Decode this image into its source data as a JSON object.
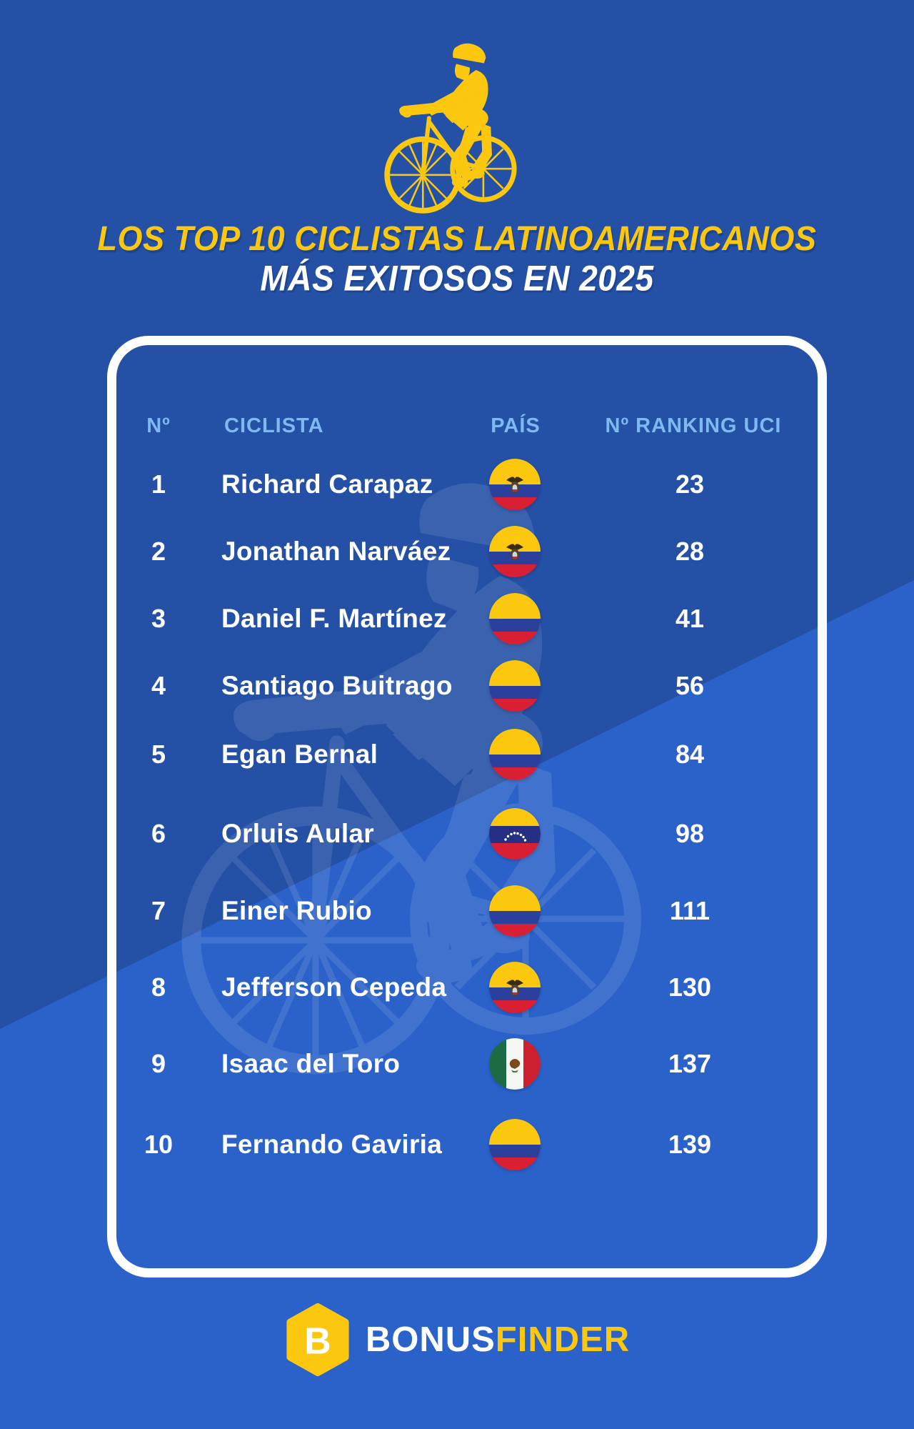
{
  "page": {
    "kind": "infographic",
    "colors": {
      "background_dark_blue": "#2450A5",
      "background_light_blue": "#2A62C9",
      "accent_yellow": "#FBC70F",
      "header_light_blue": "#7EB9F0",
      "text_white": "#FFFFFF"
    }
  },
  "header": {
    "illustration": "yellow-road-cyclist-icon",
    "title_line1": "LOS TOP 10 CICLISTAS LATINOAMERICANOS",
    "title_line2": "MÁS EXITOSOS EN 2025"
  },
  "table": {
    "columns": [
      {
        "key": "rank",
        "label": "Nº"
      },
      {
        "key": "name",
        "label": "CICLISTA"
      },
      {
        "key": "country",
        "label": "PAÍS"
      },
      {
        "key": "uci",
        "label": "Nº RANKING UCI"
      }
    ],
    "rows": [
      {
        "rank": "1",
        "name": "Richard Carapaz",
        "country": "Ecuador",
        "flag": "ecuador",
        "uci": "23"
      },
      {
        "rank": "2",
        "name": "Jonathan Narváez",
        "country": "Ecuador",
        "flag": "ecuador",
        "uci": "28"
      },
      {
        "rank": "3",
        "name": "Daniel F. Martínez",
        "country": "Colombia",
        "flag": "colombia",
        "uci": "41"
      },
      {
        "rank": "4",
        "name": "Santiago Buitrago",
        "country": "Colombia",
        "flag": "colombia",
        "uci": "56"
      },
      {
        "rank": "5",
        "name": "Egan Bernal",
        "country": "Colombia",
        "flag": "colombia",
        "uci": "84"
      },
      {
        "rank": "6",
        "name": "Orluis Aular",
        "country": "Venezuela",
        "flag": "venezuela",
        "uci": "98"
      },
      {
        "rank": "7",
        "name": "Einer Rubio",
        "country": "Colombia",
        "flag": "colombia",
        "uci": "111"
      },
      {
        "rank": "8",
        "name": "Jefferson Cepeda",
        "country": "Ecuador",
        "flag": "ecuador",
        "uci": "130"
      },
      {
        "rank": "9",
        "name": "Isaac del Toro",
        "country": "Mexico",
        "flag": "mexico",
        "uci": "137"
      },
      {
        "rank": "10",
        "name": "Fernando Gaviria",
        "country": "Colombia",
        "flag": "colombia",
        "uci": "139"
      }
    ]
  },
  "footer": {
    "logo": "bonusfinder-hexagon-b-logo",
    "brand_prefix": "BONUS",
    "brand_suffix": "FINDER"
  },
  "chart_data": {
    "type": "table",
    "title": "LOS TOP 10 CICLISTAS LATINOAMERICANOS MÁS EXITOSOS EN 2025",
    "columns": [
      "Nº",
      "CICLISTA",
      "PAÍS",
      "Nº RANKING UCI"
    ],
    "rows": [
      [
        1,
        "Richard Carapaz",
        "Ecuador",
        23
      ],
      [
        2,
        "Jonathan Narváez",
        "Ecuador",
        28
      ],
      [
        3,
        "Daniel F. Martínez",
        "Colombia",
        41
      ],
      [
        4,
        "Santiago Buitrago",
        "Colombia",
        56
      ],
      [
        5,
        "Egan Bernal",
        "Colombia",
        84
      ],
      [
        6,
        "Orluis Aular",
        "Venezuela",
        98
      ],
      [
        7,
        "Einer Rubio",
        "Colombia",
        111
      ],
      [
        8,
        "Jefferson Cepeda",
        "Ecuador",
        130
      ],
      [
        9,
        "Isaac del Toro",
        "Mexico",
        137
      ],
      [
        10,
        "Fernando Gaviria",
        "Colombia",
        139
      ]
    ]
  }
}
